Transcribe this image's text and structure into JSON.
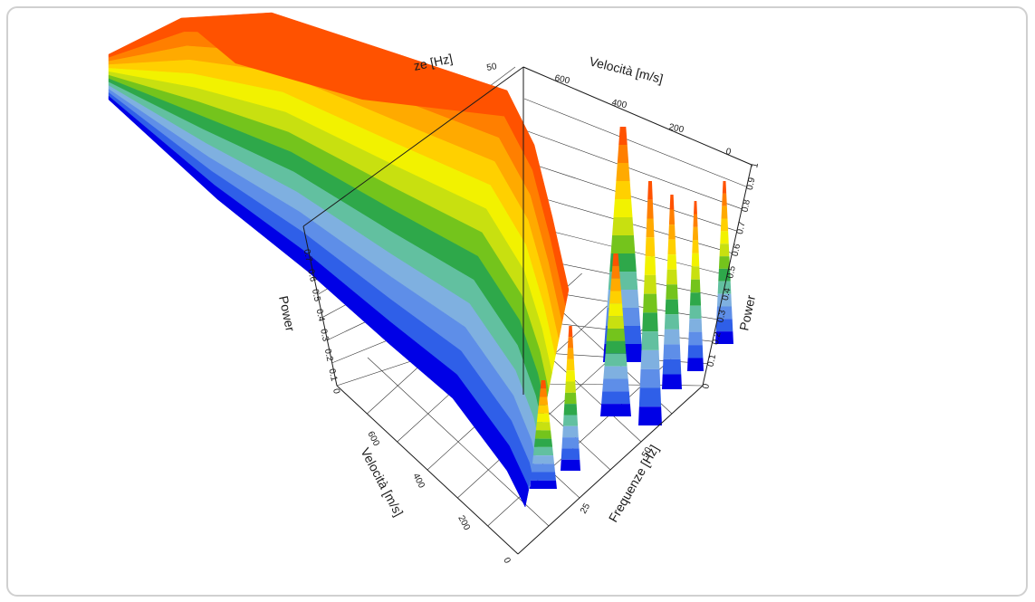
{
  "colors": {
    "palette": [
      "#0000e6",
      "#2f5fe8",
      "#5e8ee8",
      "#7fb0e0",
      "#62c0a0",
      "#2ea84a",
      "#74c41c",
      "#c8e010",
      "#f2f200",
      "#ffd000",
      "#ffaa00",
      "#ff7f00",
      "#ff5200"
    ],
    "axis": "#1a1a1a",
    "frame": "#d0d0d0"
  },
  "chart_data": {
    "type": "surface-3d",
    "title": "",
    "front_left_axis": {
      "title": "Velocità [m/s]",
      "ticks": [
        "0",
        "200",
        "400",
        "600"
      ],
      "range": [
        0,
        700
      ]
    },
    "front_right_axis": {
      "title": "Frequenze [Hz]",
      "ticks": [
        "25",
        "50"
      ],
      "range": [
        0,
        60
      ]
    },
    "back_left_axis": {
      "title": "Frequenze [Hz]",
      "visible_title": "ze [Hz]",
      "ticks": [
        "50"
      ]
    },
    "back_right_axis": {
      "title": "Velocità [m/s]",
      "ticks": [
        "0",
        "200",
        "400",
        "600"
      ]
    },
    "left_vertical_axis": {
      "title": "Power",
      "ticks": [
        "0",
        "0.1",
        "0.2",
        "0.3",
        "0.4",
        "0.5",
        "0.6",
        "0.7"
      ]
    },
    "right_vertical_axis": {
      "title": "Power",
      "ticks": [
        "0",
        "0.1",
        "0.2",
        "0.3",
        "0.4",
        "0.5",
        "0.6",
        "0.7",
        "0.8",
        "0.9",
        "1"
      ],
      "range": [
        0,
        1
      ]
    },
    "grid": true,
    "colormap": "rainbow banded (blue = low power, red = high power)",
    "surface_note": "Power surface over frequency and velocity; high ridge at high velocities, several narrow peaks near 300–500 m/s across 10–55 Hz."
  }
}
